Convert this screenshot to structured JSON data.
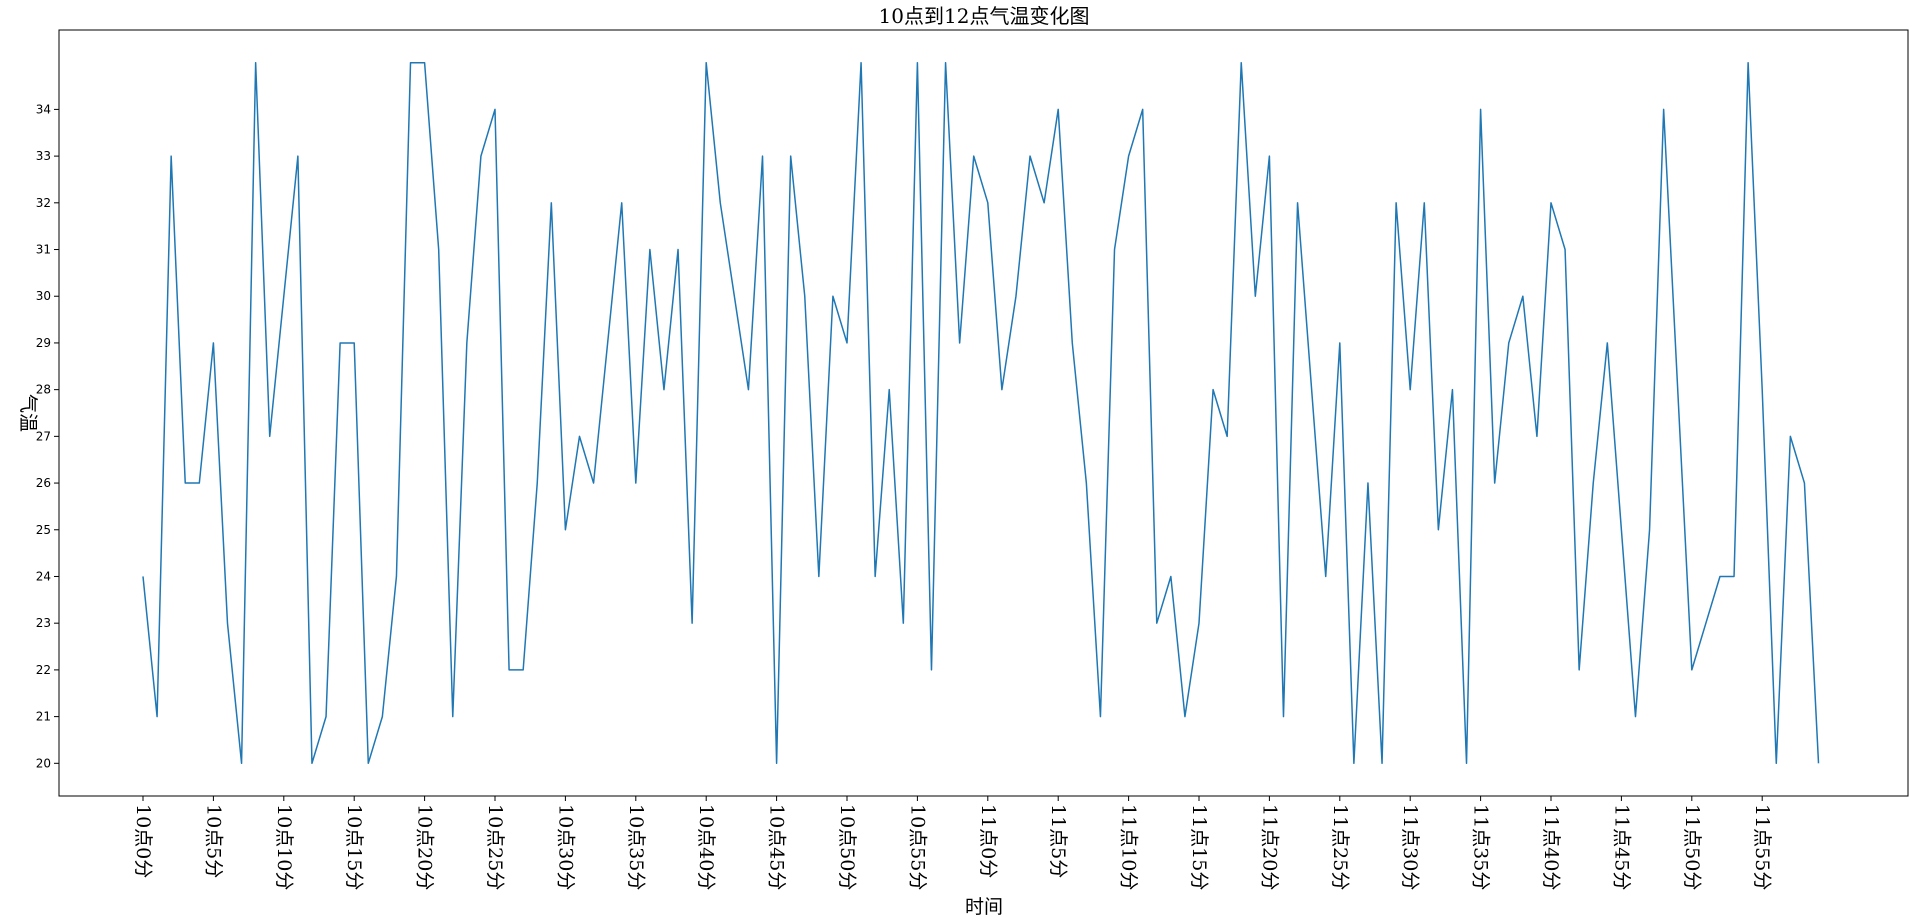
{
  "chart_data": {
    "type": "line",
    "title": "10点到12点气温变化图",
    "xlabel": "时间",
    "ylabel": "气温",
    "color": "#1f77b4",
    "grid": false,
    "ylim": [
      19.3,
      35.7
    ],
    "yticks": [
      20,
      21,
      22,
      23,
      24,
      25,
      26,
      27,
      28,
      29,
      30,
      31,
      32,
      33,
      34
    ],
    "xtick_labels": [
      "10点0分",
      "10点5分",
      "10点10分",
      "10点15分",
      "10点20分",
      "10点25分",
      "10点30分",
      "10点35分",
      "10点40分",
      "10点45分",
      "10点50分",
      "10点55分",
      "11点0分",
      "11点5分",
      "11点10分",
      "11点15分",
      "11点20分",
      "11点25分",
      "11点30分",
      "11点35分",
      "11点40分",
      "11点45分",
      "11点50分",
      "11点55分"
    ],
    "xtick_step": 5,
    "series": [
      {
        "values": [
          24,
          21,
          33,
          26,
          26,
          29,
          23,
          20,
          35,
          27,
          30,
          33,
          20,
          21,
          29,
          29,
          20,
          21,
          24,
          35,
          35,
          31,
          21,
          29,
          33,
          34,
          22,
          22,
          26,
          32,
          25,
          27,
          26,
          29,
          32,
          26,
          31,
          28,
          31,
          23,
          35,
          32,
          30,
          28,
          33,
          20,
          33,
          30,
          24,
          30,
          29,
          35,
          24,
          28,
          23,
          35,
          22,
          35,
          29,
          33,
          32,
          28,
          30,
          33,
          32,
          34,
          29,
          26,
          21,
          31,
          33,
          34,
          23,
          24,
          21,
          23,
          28,
          27,
          35,
          30,
          33,
          21,
          32,
          28,
          24,
          29,
          20,
          26,
          20,
          32,
          28,
          32,
          25,
          28,
          20,
          34,
          26,
          29,
          30,
          27,
          32,
          31,
          22,
          26,
          29,
          25,
          21,
          25,
          34,
          28,
          22,
          23,
          24,
          24,
          35,
          28,
          20,
          27,
          26,
          20
        ]
      }
    ]
  }
}
